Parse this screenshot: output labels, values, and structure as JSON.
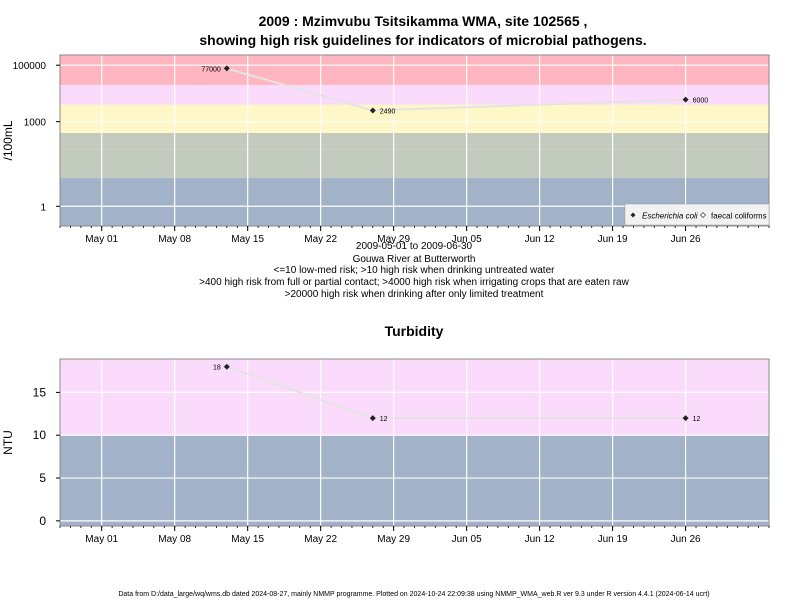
{
  "title": {
    "line1": "2009 : Mzimvubu Tsitsikamma WMA, site 102565 ,",
    "line2": "showing high risk guidelines for indicators of microbial pathogens."
  },
  "colors": {
    "red": "#ffb6c1",
    "pink": "#fbdbfb",
    "yellow": "#fff8c6",
    "green": "#c3cbbf",
    "blue": "#a1b2c9",
    "ecoli_line": "#e4e4e4",
    "grid": "#ffffff"
  },
  "chart_data": [
    {
      "type": "scatter",
      "ylabel": "/100mL",
      "yscale": "log",
      "x_range": [
        "2009-04-27",
        "2009-07-04"
      ],
      "ylim": [
        0.2,
        230000
      ],
      "yticks": [
        {
          "value": 1,
          "label": "1"
        },
        {
          "value": 1000,
          "label": "1000"
        },
        {
          "value": 100000,
          "label": "100000"
        }
      ],
      "xticks": [
        {
          "date": "2009-05-01",
          "label": "May 01"
        },
        {
          "date": "2009-05-08",
          "label": "May 08"
        },
        {
          "date": "2009-05-15",
          "label": "May 15"
        },
        {
          "date": "2009-05-22",
          "label": "May 22"
        },
        {
          "date": "2009-05-29",
          "label": "May 29"
        },
        {
          "date": "2009-06-05",
          "label": "Jun 05"
        },
        {
          "date": "2009-06-12",
          "label": "Jun 12"
        },
        {
          "date": "2009-06-19",
          "label": "Jun 19"
        },
        {
          "date": "2009-06-26",
          "label": "Jun 26"
        }
      ],
      "bands": [
        {
          "from": 0.2,
          "to": 10,
          "color": "blue"
        },
        {
          "from": 10,
          "to": 100,
          "color": "green"
        },
        {
          "from": 100,
          "to": 400,
          "color": "green"
        },
        {
          "from": 400,
          "to": 2000,
          "color": "yellow"
        },
        {
          "from": 2000,
          "to": 4000,
          "color": "yellow"
        },
        {
          "from": 4000,
          "to": 20000,
          "color": "pink"
        },
        {
          "from": 20000,
          "to": 230000,
          "color": "red"
        }
      ],
      "series": [
        {
          "name": "Escherichia coli",
          "points": [
            {
              "date": "2009-05-13",
              "value": 77000,
              "label": "77000"
            },
            {
              "date": "2009-05-27",
              "value": 2490,
              "label": "2490"
            },
            {
              "date": "2009-06-26",
              "value": 6000,
              "label": "6000"
            }
          ]
        },
        {
          "name": "faecal coliforms",
          "points": []
        }
      ],
      "legend": "bottom-right",
      "grid": true,
      "notes": [
        "2009-05-01 to 2009-06-30",
        "Gouwa River at Butterworth",
        "<=10 low-med risk; >10 high risk when drinking untreated water",
        ">400 high risk from full or partial contact; >4000 high risk when irrigating crops that are eaten raw",
        ">20000 high risk when drinking after only limited treatment"
      ]
    },
    {
      "type": "scatter",
      "title": "Turbidity",
      "ylabel": "NTU",
      "x_range": [
        "2009-04-27",
        "2009-07-04"
      ],
      "ylim": [
        -0.6,
        18.9
      ],
      "yticks": [
        {
          "value": 0,
          "label": "0"
        },
        {
          "value": 5,
          "label": "5"
        },
        {
          "value": 10,
          "label": "10"
        },
        {
          "value": 15,
          "label": "15"
        }
      ],
      "xticks": [
        {
          "date": "2009-05-01",
          "label": "May 01"
        },
        {
          "date": "2009-05-08",
          "label": "May 08"
        },
        {
          "date": "2009-05-15",
          "label": "May 15"
        },
        {
          "date": "2009-05-22",
          "label": "May 22"
        },
        {
          "date": "2009-05-29",
          "label": "May 29"
        },
        {
          "date": "2009-06-05",
          "label": "Jun 05"
        },
        {
          "date": "2009-06-12",
          "label": "Jun 12"
        },
        {
          "date": "2009-06-19",
          "label": "Jun 19"
        },
        {
          "date": "2009-06-26",
          "label": "Jun 26"
        }
      ],
      "bands": [
        {
          "from": -0.6,
          "to": 10,
          "color": "blue"
        },
        {
          "from": 10,
          "to": 18.9,
          "color": "pink"
        }
      ],
      "series": [
        {
          "points": [
            {
              "date": "2009-05-13",
              "value": 18,
              "label": "18"
            },
            {
              "date": "2009-05-27",
              "value": 12,
              "label": "12"
            },
            {
              "date": "2009-06-26",
              "value": 12,
              "label": "12"
            }
          ]
        }
      ],
      "grid": true
    }
  ],
  "footer": "Data from D:/data_large/wq/wms.db dated 2024-08-27, mainly NMMP programme. Plotted on 2024-10-24 22:09:38 using NMMP_WMA_web.R ver 9.3 under R version 4.4.1 (2024-06-14 ucrt)"
}
